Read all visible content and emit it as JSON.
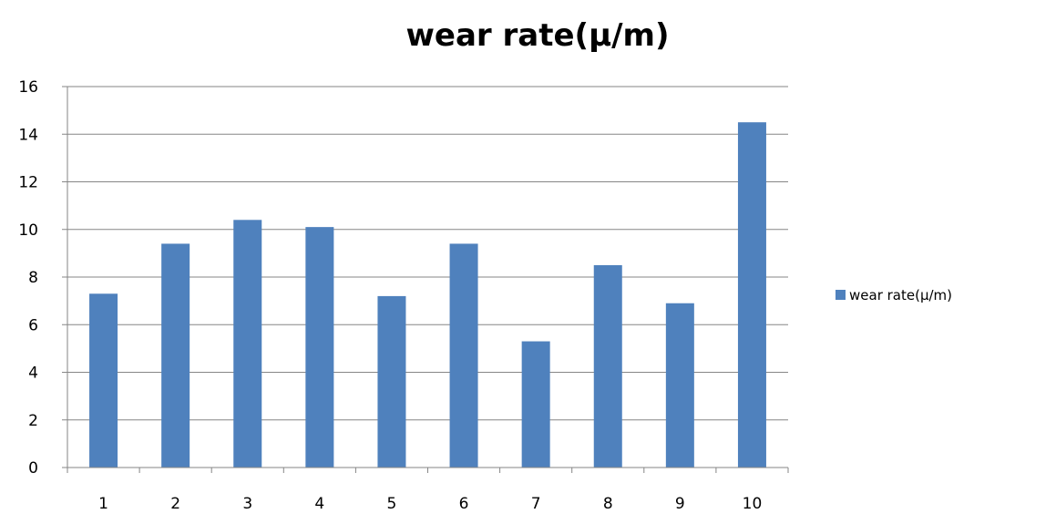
{
  "chart_data": {
    "type": "bar",
    "title": "wear rate(µ/m)",
    "xlabel": "",
    "ylabel": "",
    "categories": [
      "1",
      "2",
      "3",
      "4",
      "5",
      "6",
      "7",
      "8",
      "9",
      "10"
    ],
    "series": [
      {
        "name": "wear rate(µ/m)",
        "color": "#4f81bd",
        "values": [
          7.3,
          9.4,
          10.4,
          10.1,
          7.2,
          9.4,
          5.3,
          8.5,
          6.9,
          14.5
        ]
      }
    ],
    "ylim": [
      0,
      16
    ],
    "yticks": [
      "0",
      "2",
      "4",
      "6",
      "8",
      "10",
      "12",
      "14",
      "16"
    ],
    "grid": true,
    "legend": "right"
  }
}
